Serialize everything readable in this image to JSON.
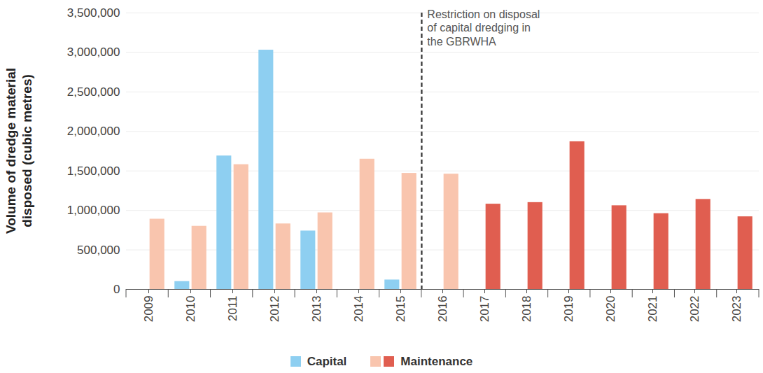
{
  "chart_data": {
    "type": "bar",
    "y_label": "Volume of dredge material\ndisposed (cubic metres)",
    "categories": [
      "2009",
      "2010",
      "2011",
      "2012",
      "2013",
      "2014",
      "2015",
      "2016",
      "2017",
      "2018",
      "2019",
      "2020",
      "2021",
      "2022",
      "2023"
    ],
    "series": [
      {
        "name": "Capital",
        "color": "#8ecff1",
        "values": [
          null,
          100000,
          1690000,
          3030000,
          740000,
          null,
          120000,
          null,
          null,
          null,
          null,
          null,
          null,
          null,
          null
        ]
      },
      {
        "name": "Maintenance",
        "colors": [
          "#f9c5ae",
          "#f9c5ae",
          "#f9c5ae",
          "#f9c5ae",
          "#f9c5ae",
          "#f9c5ae",
          "#f9c5ae",
          "#f9c5ae",
          "#e05e50",
          "#e05e50",
          "#e05e50",
          "#e05e50",
          "#e05e50",
          "#e05e50",
          "#e05e50"
        ],
        "values": [
          890000,
          800000,
          1580000,
          830000,
          970000,
          1650000,
          1470000,
          1460000,
          1080000,
          1100000,
          1870000,
          1060000,
          960000,
          1140000,
          920000
        ]
      }
    ],
    "annotations": [
      {
        "text": "Restriction on disposal\nof capital dredging in\nthe GBRWHA",
        "x": "2016"
      }
    ],
    "ylim": [
      0,
      3500000
    ],
    "yticks": [
      0,
      {
        "value": 500000,
        "label": "500,000"
      },
      {
        "value": 1000000,
        "label": "1,000,000"
      },
      {
        "value": 1500000,
        "label": "1,500,000"
      },
      {
        "value": 2000000,
        "label": "2,000,000"
      },
      {
        "value": 2500000,
        "label": "2,500,000"
      },
      {
        "value": 3000000,
        "label": "3,000,000"
      },
      {
        "value": 3500000,
        "label": "3,500,000"
      }
    ],
    "grid": true,
    "legend": "bottom"
  }
}
